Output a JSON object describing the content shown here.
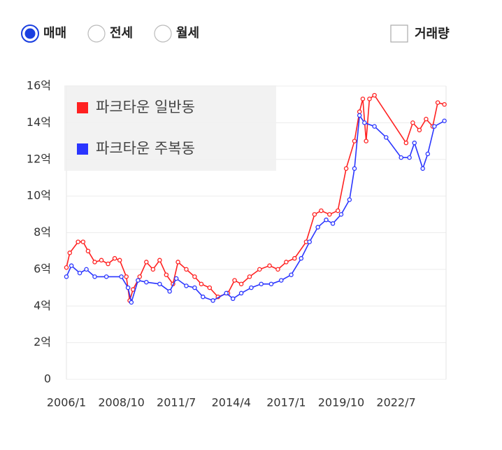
{
  "controls": {
    "radios": [
      "매매",
      "전세",
      "월세"
    ],
    "selected_index": 0,
    "checkbox": "거래량"
  },
  "chart_data": {
    "type": "line",
    "xlim": [
      "2006/1",
      "2025/1"
    ],
    "xticks": [
      "2006/1",
      "2008/10",
      "2011/7",
      "2014/4",
      "2017/1",
      "2019/10",
      "2022/7"
    ],
    "ylim": [
      0,
      16
    ],
    "yticks": [
      0,
      {
        "value": 2,
        "label": "2억"
      },
      {
        "value": 4,
        "label": "4억"
      },
      {
        "value": 6,
        "label": "6억"
      },
      {
        "value": 8,
        "label": "8억"
      },
      {
        "value": 10,
        "label": "10억"
      },
      {
        "value": 12,
        "label": "12억"
      },
      {
        "value": 14,
        "label": "14억"
      },
      {
        "value": 16,
        "label": "16억"
      }
    ],
    "grid": true,
    "legend": "top-left",
    "series": [
      {
        "name": "파크타운 일반동",
        "color": "#ff2020",
        "x": [
          "2006/1",
          "2006/3",
          "2006/8",
          "2006/11",
          "2007/2",
          "2007/6",
          "2007/10",
          "2008/2",
          "2008/6",
          "2008/9",
          "2009/1",
          "2009/3",
          "2009/5",
          "2009/9",
          "2010/1",
          "2010/5",
          "2010/9",
          "2011/1",
          "2011/5",
          "2011/8",
          "2012/1",
          "2012/6",
          "2012/10",
          "2013/3",
          "2013/8",
          "2014/2",
          "2014/6",
          "2014/10",
          "2015/3",
          "2015/9",
          "2016/3",
          "2016/8",
          "2017/1",
          "2017/6",
          "2018/1",
          "2018/6",
          "2018/10",
          "2019/3",
          "2019/8",
          "2020/1",
          "2020/6",
          "2020/9",
          "2020/11",
          "2021/1",
          "2021/3",
          "2021/6",
          "2023/1",
          "2023/5",
          "2023/9",
          "2024/1",
          "2024/5",
          "2024/8",
          "2024/12"
        ],
        "values": [
          6.1,
          6.9,
          7.5,
          7.5,
          7.0,
          6.4,
          6.5,
          6.3,
          6.6,
          6.5,
          5.6,
          4.3,
          4.9,
          5.6,
          6.4,
          6.0,
          6.5,
          5.7,
          5.2,
          6.4,
          6.0,
          5.6,
          5.2,
          5.0,
          4.5,
          4.7,
          5.4,
          5.2,
          5.6,
          6.0,
          6.2,
          6.0,
          6.4,
          6.6,
          7.5,
          9.0,
          9.2,
          9.0,
          9.2,
          11.5,
          13.0,
          14.6,
          15.3,
          13.0,
          15.3,
          15.5,
          12.9,
          14.0,
          13.6,
          14.2,
          13.8,
          15.1,
          15.0
        ]
      },
      {
        "name": "파크타운 주복동",
        "color": "#2a35ff",
        "x": [
          "2006/1",
          "2006/4",
          "2006/9",
          "2007/1",
          "2007/6",
          "2008/1",
          "2008/10",
          "2009/2",
          "2009/4",
          "2009/8",
          "2010/1",
          "2010/9",
          "2011/3",
          "2011/7",
          "2012/1",
          "2012/6",
          "2012/11",
          "2013/5",
          "2014/1",
          "2014/5",
          "2014/10",
          "2015/4",
          "2015/10",
          "2016/4",
          "2016/10",
          "2017/4",
          "2017/10",
          "2018/3",
          "2018/8",
          "2019/1",
          "2019/5",
          "2019/10",
          "2020/3",
          "2020/6",
          "2020/9",
          "2020/12",
          "2021/6",
          "2022/1",
          "2022/10",
          "2023/3",
          "2023/6",
          "2023/11",
          "2024/2",
          "2024/6",
          "2024/12"
        ],
        "values": [
          5.6,
          6.2,
          5.8,
          6.0,
          5.6,
          5.6,
          5.6,
          5.0,
          4.2,
          5.4,
          5.3,
          5.2,
          4.8,
          5.5,
          5.1,
          5.0,
          4.5,
          4.3,
          4.7,
          4.4,
          4.7,
          5.0,
          5.2,
          5.2,
          5.4,
          5.7,
          6.6,
          7.5,
          8.3,
          8.7,
          8.5,
          9.0,
          9.8,
          11.5,
          14.4,
          14.0,
          13.8,
          13.2,
          12.1,
          12.1,
          12.9,
          11.5,
          12.3,
          13.8,
          14.1
        ]
      }
    ]
  }
}
